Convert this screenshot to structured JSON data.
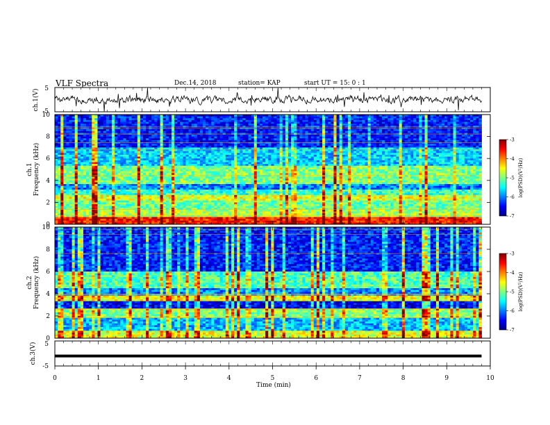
{
  "header": {
    "title": "VLF Spectra",
    "date": "Dec.14, 2018",
    "station": "station= KAP",
    "start": "start  UT =   15: 0  : 1"
  },
  "chart_data": [
    {
      "type": "line",
      "ylabel": "ch.1(V)",
      "ylim": [
        -5,
        5
      ],
      "yticks": [
        "5",
        "-5"
      ],
      "xlim": [
        0,
        10
      ],
      "series_note": "noisy waveform, amplitude about ±2 V",
      "color": "#000000"
    },
    {
      "type": "heatmap",
      "ylabel_top": "ch.1",
      "ylabel": "Frequency (kHz)",
      "ylim": [
        0,
        10
      ],
      "yticks": [
        "0",
        "2",
        "4",
        "6",
        "8",
        "10"
      ],
      "xlim": [
        0,
        9.8
      ],
      "colorbar": {
        "label": "log(PSD)(V²/Hz)",
        "range": [
          -7,
          -3
        ],
        "ticks": [
          "-3",
          "-4",
          "-5",
          "-6",
          "-7"
        ]
      },
      "bands_khz": [
        {
          "from": 0,
          "to": 0.6,
          "level": -3.6
        },
        {
          "from": 0.6,
          "to": 1.3,
          "level": -4.8
        },
        {
          "from": 1.3,
          "to": 2.2,
          "level": -5.1
        },
        {
          "from": 2.2,
          "to": 2.6,
          "level": -4.6
        },
        {
          "from": 2.6,
          "to": 3.2,
          "level": -5.3
        },
        {
          "from": 3.2,
          "to": 3.7,
          "level": -6.0
        },
        {
          "from": 3.7,
          "to": 5.3,
          "level": -5.0
        },
        {
          "from": 5.3,
          "to": 7.0,
          "level": -5.7
        },
        {
          "from": 7.0,
          "to": 10,
          "level": -6.4
        }
      ]
    },
    {
      "type": "heatmap",
      "ylabel_top": "ch.2",
      "ylabel": "Frequency (kHz)",
      "ylim": [
        0,
        10
      ],
      "yticks": [
        "0",
        "2",
        "4",
        "6",
        "8",
        "10"
      ],
      "xlim": [
        0,
        9.8
      ],
      "colorbar": {
        "label": "log(PSD)(V²/Hz)",
        "range": [
          -7,
          -3
        ],
        "ticks": [
          "-3",
          "-4",
          "-5",
          "-6",
          "-7"
        ]
      },
      "bands_khz": [
        {
          "from": 0,
          "to": 0.6,
          "level": -4.6
        },
        {
          "from": 0.6,
          "to": 1.8,
          "level": -5.8
        },
        {
          "from": 1.8,
          "to": 2.6,
          "level": -5.0
        },
        {
          "from": 2.6,
          "to": 3.3,
          "level": -6.6
        },
        {
          "from": 3.3,
          "to": 3.8,
          "level": -4.6
        },
        {
          "from": 3.8,
          "to": 4.5,
          "level": -6.0
        },
        {
          "from": 4.5,
          "to": 6.0,
          "level": -5.2
        },
        {
          "from": 6.0,
          "to": 10,
          "level": -6.4
        }
      ]
    },
    {
      "type": "line",
      "ylabel": "ch.3(V)",
      "ylim": [
        -5,
        5
      ],
      "yticks": [
        "5",
        "-5"
      ],
      "xlim": [
        0,
        10
      ],
      "series": [
        {
          "x": [
            0,
            9.8
          ],
          "y": [
            -1,
            -1
          ]
        }
      ],
      "xlabel": "Time (min)",
      "xticks": [
        "0",
        "1",
        "2",
        "3",
        "4",
        "5",
        "6",
        "7",
        "8",
        "9",
        "10"
      ]
    }
  ],
  "colors": {
    "colormap": [
      "#000080",
      "#0000ff",
      "#0080ff",
      "#00ffff",
      "#80ff80",
      "#ffff00",
      "#ff8000",
      "#ff0000",
      "#800000"
    ]
  }
}
